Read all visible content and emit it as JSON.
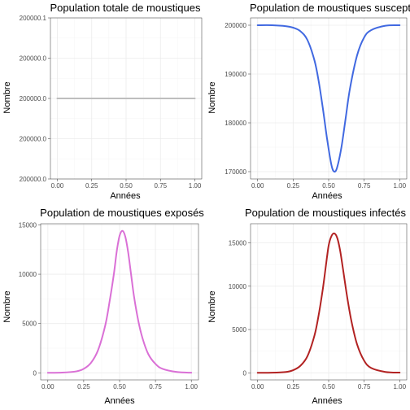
{
  "chart_data": [
    {
      "type": "line",
      "title": "Population totale de moustiques",
      "xlabel": "Années",
      "ylabel": "Nombre",
      "xlim": [
        -0.05,
        1.05
      ],
      "ylim": [
        199999.9,
        200000.1
      ],
      "x_ticks": [
        0.0,
        0.25,
        0.5,
        0.75,
        1.0
      ],
      "x_tick_labels": [
        "0.00",
        "0.25",
        "0.50",
        "0.75",
        "1.00"
      ],
      "y_ticks": [
        199999.9,
        199999.95,
        200000.0,
        200000.05,
        200000.1
      ],
      "y_tick_labels": [
        "200000.0",
        "200000.0",
        "200000.0",
        "200000.0",
        "200000.1"
      ],
      "grid": true,
      "series": [
        {
          "color": "#bebebe",
          "x": [
            0.0,
            0.25,
            0.5,
            0.75,
            1.0
          ],
          "y": [
            200000.0,
            200000.0,
            200000.0,
            200000.0,
            200000.0
          ]
        }
      ]
    },
    {
      "type": "line",
      "title": "Population de moustiques susceptibles",
      "xlabel": "Années",
      "ylabel": "Nombre",
      "xlim": [
        -0.05,
        1.05
      ],
      "ylim": [
        168500,
        201500
      ],
      "x_ticks": [
        0.0,
        0.25,
        0.5,
        0.75,
        1.0
      ],
      "x_tick_labels": [
        "0.00",
        "0.25",
        "0.50",
        "0.75",
        "1.00"
      ],
      "y_ticks": [
        170000,
        180000,
        190000,
        200000
      ],
      "y_tick_labels": [
        "170000",
        "180000",
        "190000",
        "200000"
      ],
      "grid": true,
      "series": [
        {
          "color": "#4169e1",
          "x": [
            0.0,
            0.1,
            0.2,
            0.25,
            0.3,
            0.35,
            0.4,
            0.43,
            0.46,
            0.49,
            0.52,
            0.54,
            0.56,
            0.59,
            0.62,
            0.65,
            0.7,
            0.75,
            0.8,
            0.9,
            1.0
          ],
          "y": [
            200000,
            200000,
            199800,
            199500,
            198800,
            197000,
            192800,
            188500,
            182800,
            176500,
            171300,
            170000,
            170900,
            175000,
            181000,
            187000,
            193800,
            197500,
            199000,
            199900,
            200000
          ]
        }
      ]
    },
    {
      "type": "line",
      "title": "Population de moustiques exposés",
      "xlabel": "Années",
      "ylabel": "Nombre",
      "xlim": [
        -0.05,
        1.05
      ],
      "ylim": [
        -720,
        15120
      ],
      "x_ticks": [
        0.0,
        0.25,
        0.5,
        0.75,
        1.0
      ],
      "x_tick_labels": [
        "0.00",
        "0.25",
        "0.50",
        "0.75",
        "1.00"
      ],
      "y_ticks": [
        0,
        5000,
        10000,
        15000
      ],
      "y_tick_labels": [
        "0",
        "5000",
        "10000",
        "15000"
      ],
      "grid": true,
      "series": [
        {
          "color": "#da70d6",
          "x": [
            0.0,
            0.1,
            0.2,
            0.25,
            0.3,
            0.35,
            0.4,
            0.43,
            0.46,
            0.48,
            0.5,
            0.52,
            0.54,
            0.56,
            0.58,
            0.6,
            0.63,
            0.66,
            0.7,
            0.75,
            0.8,
            0.9,
            1.0
          ],
          "y": [
            0,
            20,
            150,
            400,
            1000,
            2300,
            4800,
            7200,
            10000,
            12300,
            13900,
            14400,
            13800,
            12200,
            10000,
            7800,
            5300,
            3500,
            1900,
            900,
            400,
            80,
            10
          ]
        }
      ]
    },
    {
      "type": "line",
      "title": "Population de moustiques infectés",
      "xlabel": "Années",
      "ylabel": "Nombre",
      "xlim": [
        -0.05,
        1.05
      ],
      "ylim": [
        -820,
        17220
      ],
      "x_ticks": [
        0.0,
        0.25,
        0.5,
        0.75,
        1.0
      ],
      "x_tick_labels": [
        "0.00",
        "0.25",
        "0.50",
        "0.75",
        "1.00"
      ],
      "y_ticks": [
        0,
        5000,
        10000,
        15000
      ],
      "y_tick_labels": [
        "0",
        "5000",
        "10000",
        "15000"
      ],
      "grid": true,
      "series": [
        {
          "color": "#b22222",
          "x": [
            0.0,
            0.1,
            0.2,
            0.25,
            0.3,
            0.35,
            0.4,
            0.43,
            0.46,
            0.48,
            0.5,
            0.52,
            0.54,
            0.56,
            0.58,
            0.6,
            0.63,
            0.66,
            0.7,
            0.75,
            0.8,
            0.9,
            1.0
          ],
          "y": [
            0,
            10,
            100,
            300,
            800,
            1900,
            4300,
            6700,
            9800,
            12300,
            14700,
            15800,
            16100,
            15600,
            14200,
            12100,
            8800,
            6000,
            3300,
            1400,
            550,
            100,
            20
          ]
        }
      ]
    }
  ]
}
